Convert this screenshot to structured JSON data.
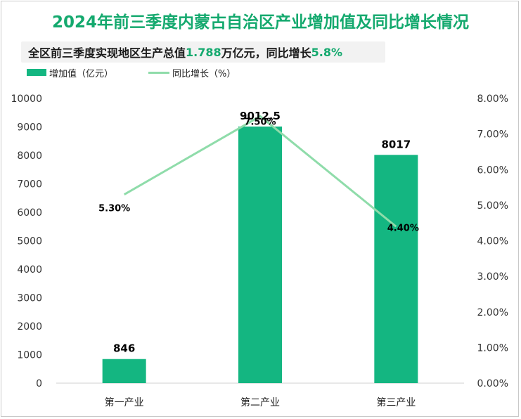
{
  "title": "2024年前三季度内蒙古自治区产业增加值及同比增长情况",
  "subtitle": {
    "prefix": "全区前三季度实现地区生产总值",
    "total_value": "1.788",
    "mid": "万亿元，同比增长",
    "growth": "5.8%"
  },
  "legend": {
    "bar_label": "增加值（亿元）",
    "line_label": "同比增长（%）"
  },
  "colors": {
    "bar": "#14b681",
    "line": "#8fdcaa",
    "title": "#14a96e"
  },
  "chart_data": {
    "type": "bar+line",
    "categories": [
      "第一产业",
      "第二产业",
      "第三产业"
    ],
    "series": [
      {
        "name": "增加值（亿元）",
        "type": "bar",
        "axis": "left",
        "values": [
          846,
          9012.5,
          8017
        ],
        "labels": [
          "846",
          "9012.5",
          "8017"
        ]
      },
      {
        "name": "同比增长（%）",
        "type": "line",
        "axis": "right",
        "values": [
          5.3,
          7.5,
          4.4
        ],
        "labels": [
          "5.30%",
          "7.50%",
          "4.40%"
        ]
      }
    ],
    "y_left": {
      "min": 0,
      "max": 10000,
      "ticks": [
        "0",
        "1000",
        "2000",
        "3000",
        "4000",
        "5000",
        "6000",
        "7000",
        "8000",
        "9000",
        "10000"
      ]
    },
    "y_right": {
      "min": 0,
      "max": 8,
      "ticks": [
        "0.00%",
        "1.00%",
        "2.00%",
        "3.00%",
        "4.00%",
        "5.00%",
        "6.00%",
        "7.00%",
        "8.00%"
      ]
    },
    "grid": false
  }
}
